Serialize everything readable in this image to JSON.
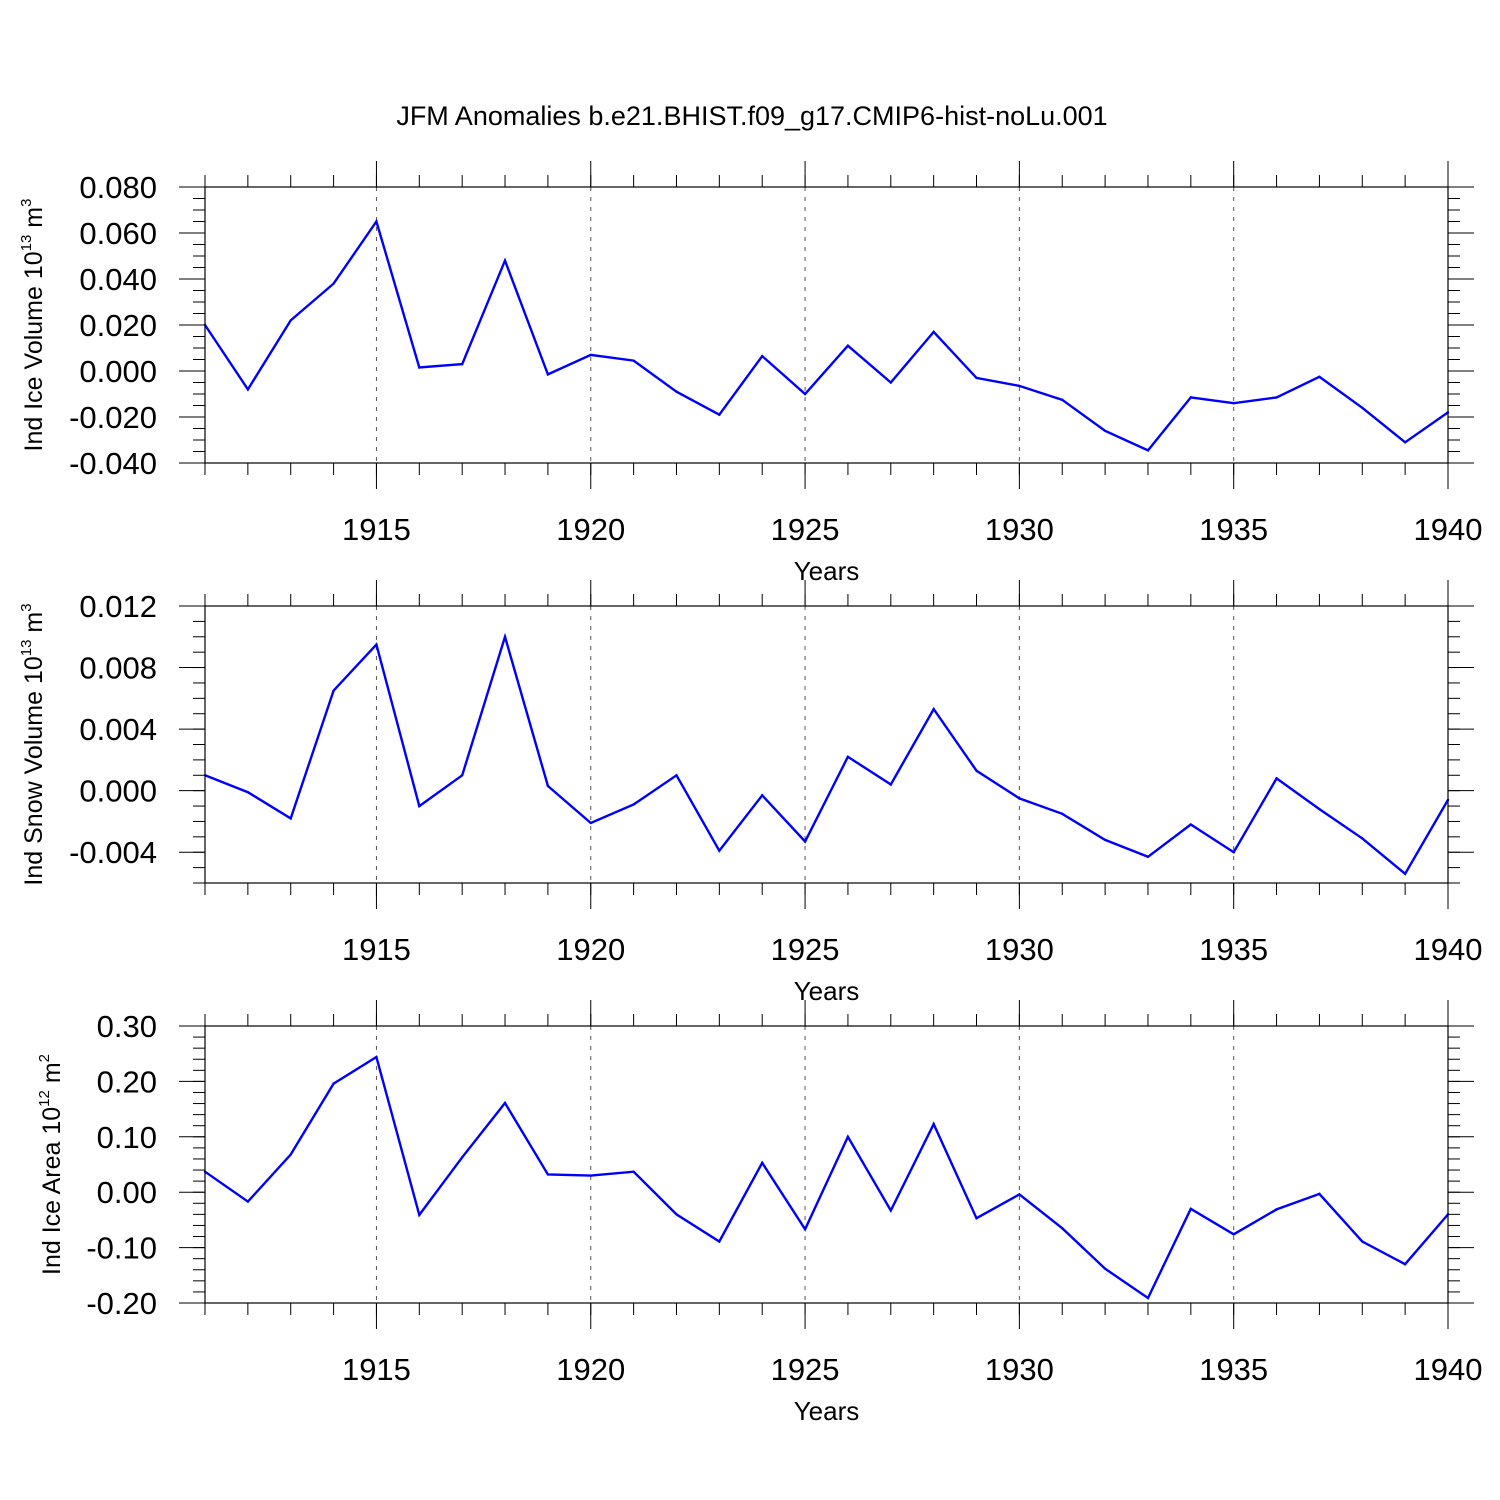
{
  "title": "JFM Anomalies b.e21.BHIST.f09_g17.CMIP6-hist-noLu.001",
  "line_color": "#0000ff",
  "chart_data": [
    {
      "type": "line",
      "ylabel_main": "Ind Ice Volume 10",
      "ylabel_exp": "13",
      "ylabel_unit": "m",
      "ylabel_unit_exp": "3",
      "xlabel": "Years",
      "xlim": [
        1911,
        1940
      ],
      "ylim": [
        -0.04,
        0.08
      ],
      "yticks": [
        -0.04,
        -0.02,
        0.0,
        0.02,
        0.04,
        0.06,
        0.08
      ],
      "ytick_labels": [
        "-0.040",
        "-0.020",
        "0.000",
        "0.020",
        "0.040",
        "0.060",
        "0.080"
      ],
      "yminor": 0.005,
      "xticks": [
        1915,
        1920,
        1925,
        1930,
        1935,
        1940
      ],
      "xtick_labels": [
        "1915",
        "1920",
        "1925",
        "1930",
        "1935",
        "1940"
      ],
      "x": [
        1911,
        1912,
        1913,
        1914,
        1915,
        1916,
        1917,
        1918,
        1919,
        1920,
        1921,
        1922,
        1923,
        1924,
        1925,
        1926,
        1927,
        1928,
        1929,
        1930,
        1931,
        1932,
        1933,
        1934,
        1935,
        1936,
        1937,
        1938,
        1939,
        1940
      ],
      "y": [
        0.02,
        -0.008,
        0.022,
        0.038,
        0.065,
        0.0015,
        0.003,
        0.048,
        -0.0015,
        0.007,
        0.0045,
        -0.009,
        -0.019,
        0.0065,
        -0.01,
        0.011,
        -0.005,
        0.017,
        -0.003,
        -0.0065,
        -0.0125,
        -0.026,
        -0.0345,
        -0.0115,
        -0.014,
        -0.0115,
        -0.0025,
        -0.016,
        -0.031,
        -0.018
      ]
    },
    {
      "type": "line",
      "ylabel_main": "Ind Snow Volume 10",
      "ylabel_exp": "13",
      "ylabel_unit": "m",
      "ylabel_unit_exp": "3",
      "xlabel": "Years",
      "xlim": [
        1911,
        1940
      ],
      "ylim": [
        -0.006,
        0.012
      ],
      "yticks": [
        -0.004,
        0.0,
        0.004,
        0.008,
        0.012
      ],
      "ytick_labels": [
        "-0.004",
        "0.000",
        "0.004",
        "0.008",
        "0.012"
      ],
      "yminor": 0.001,
      "xticks": [
        1915,
        1920,
        1925,
        1930,
        1935,
        1940
      ],
      "xtick_labels": [
        "1915",
        "1920",
        "1925",
        "1930",
        "1935",
        "1940"
      ],
      "x": [
        1911,
        1912,
        1913,
        1914,
        1915,
        1916,
        1917,
        1918,
        1919,
        1920,
        1921,
        1922,
        1923,
        1924,
        1925,
        1926,
        1927,
        1928,
        1929,
        1930,
        1931,
        1932,
        1933,
        1934,
        1935,
        1936,
        1937,
        1938,
        1939,
        1940
      ],
      "y": [
        0.001,
        -0.0001,
        -0.0018,
        0.0065,
        0.0095,
        -0.001,
        0.001,
        0.01,
        0.0003,
        -0.0021,
        -0.0009,
        0.001,
        -0.0039,
        -0.0003,
        -0.0033,
        0.0022,
        0.0004,
        0.0053,
        0.0013,
        -0.0005,
        -0.0015,
        -0.0032,
        -0.0043,
        -0.0022,
        -0.004,
        0.0008,
        -0.0012,
        -0.0031,
        -0.0054,
        -0.0006
      ]
    },
    {
      "type": "line",
      "ylabel_main": "Ind Ice Area 10",
      "ylabel_exp": "12",
      "ylabel_unit": "m",
      "ylabel_unit_exp": "2",
      "xlabel": "Years",
      "xlim": [
        1911,
        1940
      ],
      "ylim": [
        -0.2,
        0.3
      ],
      "yticks": [
        -0.2,
        -0.1,
        0.0,
        0.1,
        0.2,
        0.3
      ],
      "ytick_labels": [
        "-0.20",
        "-0.10",
        "0.00",
        "0.10",
        "0.20",
        "0.30"
      ],
      "yminor": 0.02,
      "xticks": [
        1915,
        1920,
        1925,
        1930,
        1935,
        1940
      ],
      "xtick_labels": [
        "1915",
        "1920",
        "1925",
        "1930",
        "1935",
        "1940"
      ],
      "x": [
        1911,
        1912,
        1913,
        1914,
        1915,
        1916,
        1917,
        1918,
        1919,
        1920,
        1921,
        1922,
        1923,
        1924,
        1925,
        1926,
        1927,
        1928,
        1929,
        1930,
        1931,
        1932,
        1933,
        1934,
        1935,
        1936,
        1937,
        1938,
        1939,
        1940
      ],
      "y": [
        0.037,
        -0.017,
        0.068,
        0.196,
        0.244,
        -0.041,
        0.063,
        0.161,
        0.032,
        0.03,
        0.037,
        -0.04,
        -0.089,
        0.053,
        -0.067,
        0.1,
        -0.033,
        0.123,
        -0.047,
        -0.004,
        -0.065,
        -0.138,
        -0.191,
        -0.03,
        -0.076,
        -0.031,
        -0.003,
        -0.089,
        -0.13,
        -0.04
      ]
    }
  ]
}
